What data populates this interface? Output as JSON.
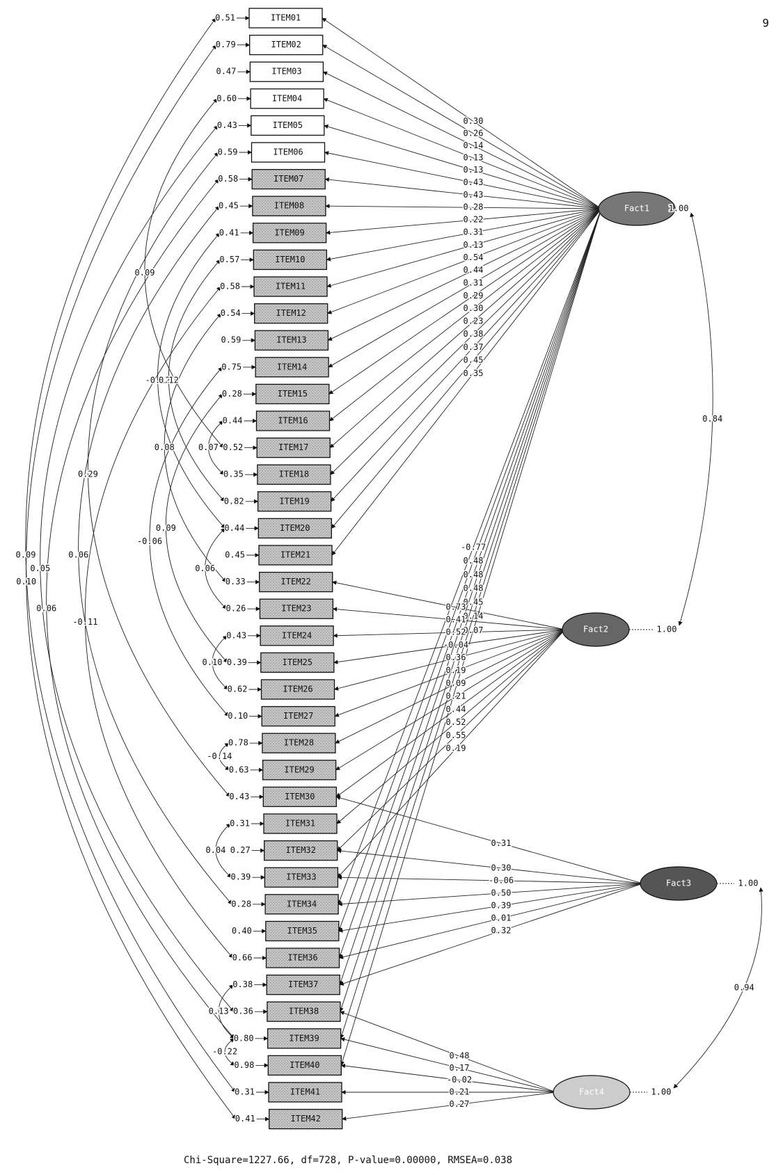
{
  "page_number": "9",
  "items": [
    {
      "label": "ITEM01",
      "error": "0.51"
    },
    {
      "label": "ITEM02",
      "error": "0.79"
    },
    {
      "label": "ITEM03",
      "error": "0.47"
    },
    {
      "label": "ITEM04",
      "error": "0.60"
    },
    {
      "label": "ITEM05",
      "error": "0.43"
    },
    {
      "label": "ITEM06",
      "error": "0.59"
    },
    {
      "label": "ITEM07",
      "error": "0.58"
    },
    {
      "label": "ITEM08",
      "error": "0.45"
    },
    {
      "label": "ITEM09",
      "error": "0.41"
    },
    {
      "label": "ITEM10",
      "error": "0.57"
    },
    {
      "label": "ITEM11",
      "error": "0.58"
    },
    {
      "label": "ITEM12",
      "error": "0.54"
    },
    {
      "label": "ITEM13",
      "error": "0.59"
    },
    {
      "label": "ITEM14",
      "error": "0.75"
    },
    {
      "label": "ITEM15",
      "error": "0.28"
    },
    {
      "label": "ITEM16",
      "error": "0.44"
    },
    {
      "label": "ITEM17",
      "error": "0.52"
    },
    {
      "label": "ITEM18",
      "error": "0.35"
    },
    {
      "label": "ITEM19",
      "error": "0.82"
    },
    {
      "label": "ITEM20",
      "error": "0.44"
    },
    {
      "label": "ITEM21",
      "error": "0.45"
    },
    {
      "label": "ITEM22",
      "error": "0.33"
    },
    {
      "label": "ITEM23",
      "error": "0.26"
    },
    {
      "label": "ITEM24",
      "error": "0.43"
    },
    {
      "label": "ITEM25",
      "error": "0.39"
    },
    {
      "label": "ITEM26",
      "error": "0.62"
    },
    {
      "label": "ITEM27",
      "error": "0.10"
    },
    {
      "label": "ITEM28",
      "error": "0.78"
    },
    {
      "label": "ITEM29",
      "error": "0.63"
    },
    {
      "label": "ITEM30",
      "error": "0.43"
    },
    {
      "label": "ITEM31",
      "error": "0.31"
    },
    {
      "label": "ITEM32",
      "error": "0.27"
    },
    {
      "label": "ITEM33",
      "error": "0.39"
    },
    {
      "label": "ITEM34",
      "error": "0.28"
    },
    {
      "label": "ITEM35",
      "error": "0.40"
    },
    {
      "label": "ITEM36",
      "error": "0.66"
    },
    {
      "label": "ITEM37",
      "error": "0.38"
    },
    {
      "label": "ITEM38",
      "error": "0.36"
    },
    {
      "label": "ITEM39",
      "error": "0.80"
    },
    {
      "label": "ITEM40",
      "error": "0.98"
    },
    {
      "label": "ITEM41",
      "error": "0.31"
    },
    {
      "label": "ITEM42",
      "error": "0.41"
    }
  ],
  "factors": [
    {
      "label": "Fact1",
      "variance": "1.00",
      "loadings": [
        {
          "item": "ITEM01",
          "value": "0.30"
        },
        {
          "item": "ITEM02",
          "value": "0.26"
        },
        {
          "item": "ITEM03",
          "value": "0.14"
        },
        {
          "item": "ITEM04",
          "value": "0.13"
        },
        {
          "item": "ITEM05",
          "value": "0.13"
        },
        {
          "item": "ITEM06",
          "value": "0.43"
        },
        {
          "item": "ITEM07",
          "value": "0.43"
        },
        {
          "item": "ITEM08",
          "value": "0.28"
        },
        {
          "item": "ITEM09",
          "value": "0.22"
        },
        {
          "item": "ITEM10",
          "value": "0.31"
        },
        {
          "item": "ITEM11",
          "value": "0.13"
        },
        {
          "item": "ITEM12",
          "value": "0.54"
        },
        {
          "item": "ITEM13",
          "value": "0.44"
        },
        {
          "item": "ITEM14",
          "value": "0.31"
        },
        {
          "item": "ITEM15",
          "value": "0.29"
        },
        {
          "item": "ITEM16",
          "value": "0.30"
        },
        {
          "item": "ITEM17",
          "value": "0.23"
        },
        {
          "item": "ITEM18",
          "value": "0.38"
        },
        {
          "item": "ITEM19",
          "value": "0.37"
        },
        {
          "item": "ITEM20",
          "value": "0.45"
        },
        {
          "item": "ITEM21",
          "value": "0.35"
        },
        {
          "item": "ITEM34",
          "value": "-0.77"
        },
        {
          "item": "ITEM35",
          "value": "0.48"
        },
        {
          "item": "ITEM36",
          "value": "0.48"
        },
        {
          "item": "ITEM37",
          "value": "0.48"
        },
        {
          "item": "ITEM38",
          "value": "0.45"
        },
        {
          "item": "ITEM39",
          "value": "0.14"
        },
        {
          "item": "ITEM40",
          "value": "0.07"
        }
      ]
    },
    {
      "label": "Fact2",
      "variance": "1.00",
      "loadings": [
        {
          "item": "ITEM22",
          "value": "0.73"
        },
        {
          "item": "ITEM23",
          "value": "0.41"
        },
        {
          "item": "ITEM24",
          "value": "0.52"
        },
        {
          "item": "ITEM25",
          "value": "-0.04"
        },
        {
          "item": "ITEM26",
          "value": "0.36"
        },
        {
          "item": "ITEM27",
          "value": "0.19"
        },
        {
          "item": "ITEM28",
          "value": "0.09"
        },
        {
          "item": "ITEM29",
          "value": "0.21"
        },
        {
          "item": "ITEM30",
          "value": "0.44"
        },
        {
          "item": "ITEM31",
          "value": "0.52"
        },
        {
          "item": "ITEM32",
          "value": "0.55"
        },
        {
          "item": "ITEM33",
          "value": "0.19"
        }
      ]
    },
    {
      "label": "Fact3",
      "variance": "1.00",
      "loadings": [
        {
          "item": "ITEM30",
          "value": "0.31"
        },
        {
          "item": "ITEM32",
          "value": "0.30"
        },
        {
          "item": "ITEM33",
          "value": "-0.06"
        },
        {
          "item": "ITEM34",
          "value": "0.50"
        },
        {
          "item": "ITEM35",
          "value": "0.39"
        },
        {
          "item": "ITEM36",
          "value": "0.01"
        },
        {
          "item": "ITEM37",
          "value": "0.32"
        }
      ]
    },
    {
      "label": "Fact4",
      "variance": "1.00",
      "loadings": [
        {
          "item": "ITEM38",
          "value": "0.48"
        },
        {
          "item": "ITEM39",
          "value": "0.17"
        },
        {
          "item": "ITEM40",
          "value": "-0.02"
        },
        {
          "item": "ITEM41",
          "value": "0.21"
        },
        {
          "item": "ITEM42",
          "value": "0.27"
        }
      ]
    }
  ],
  "factor_correlations": [
    {
      "from": "Fact1",
      "to": "Fact2",
      "value": "0.84"
    },
    {
      "from": "Fact3",
      "to": "Fact4",
      "value": "0.94"
    }
  ],
  "error_covariances": [
    {
      "from": "ITEM01",
      "to": "ITEM41",
      "value": "0.09"
    },
    {
      "from": "ITEM02",
      "to": "ITEM42",
      "value": "0.10"
    },
    {
      "from": "ITEM05",
      "to": "ITEM38",
      "value": "0.05"
    },
    {
      "from": "ITEM07",
      "to": "ITEM39",
      "value": "0.06"
    },
    {
      "from": "ITEM06",
      "to": "ITEM30",
      "value": "0.29"
    },
    {
      "from": "ITEM08",
      "to": "ITEM34",
      "value": "0.06"
    },
    {
      "from": "ITEM11",
      "to": "ITEM36",
      "value": "-0.11"
    },
    {
      "from": "ITEM04",
      "to": "ITEM17",
      "value": "0.09"
    },
    {
      "from": "ITEM09",
      "to": "ITEM20",
      "value": "-0.12"
    },
    {
      "from": "ITEM12",
      "to": "ITEM22",
      "value": "0.08"
    },
    {
      "from": "ITEM10",
      "to": "ITEM19",
      "value": "0.12"
    },
    {
      "from": "ITEM14",
      "to": "ITEM27",
      "value": "-0.06"
    },
    {
      "from": "ITEM15",
      "to": "ITEM25",
      "value": "0.09"
    },
    {
      "from": "ITEM16",
      "to": "ITEM18",
      "value": "0.07"
    },
    {
      "from": "ITEM20",
      "to": "ITEM23",
      "value": "0.06"
    },
    {
      "from": "ITEM24",
      "to": "ITEM26",
      "value": "0.10"
    },
    {
      "from": "ITEM28",
      "to": "ITEM29",
      "value": "-0.14"
    },
    {
      "from": "ITEM31",
      "to": "ITEM33",
      "value": "0.04"
    },
    {
      "from": "ITEM37",
      "to": "ITEM39",
      "value": "0.13"
    },
    {
      "from": "ITEM39",
      "to": "ITEM40",
      "value": "-0.22"
    }
  ],
  "footer": "Chi-Square=1227.66, df=728, P-value=0.00000, RMSEA=0.038"
}
